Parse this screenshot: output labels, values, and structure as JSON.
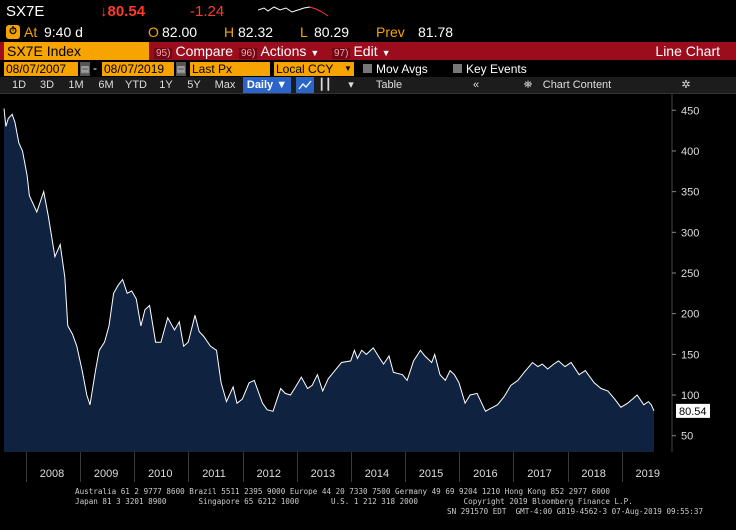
{
  "quote": {
    "ticker": "SX7E",
    "last": "↓80.54",
    "change": "-1.24",
    "at_label": "At",
    "time": "9:40 d",
    "open_label": "O",
    "open": "82.00",
    "high_label": "H",
    "high": "82.32",
    "low_label": "L",
    "low": "80.29",
    "prev_label": "Prev",
    "prev": "81.78"
  },
  "titlebar": {
    "security": "SX7E Index",
    "compare_num": "95)",
    "compare": "Compare",
    "actions_num": "96)",
    "actions": "Actions",
    "edit_num": "97)",
    "edit": "Edit",
    "chart_type": "Line Chart"
  },
  "params": {
    "start_date": "08/07/2007",
    "end_date": "08/07/2019",
    "field": "Last Px",
    "currency": "Local CCY",
    "mov_avgs": "Mov Avgs",
    "key_events": "Key Events"
  },
  "toolbar": {
    "periods": [
      "1D",
      "3D",
      "1M",
      "6M",
      "YTD",
      "1Y",
      "5Y",
      "Max"
    ],
    "frequency": "Daily ▼",
    "table": "Table",
    "chart_content": "Chart Content"
  },
  "chart_data": {
    "type": "area",
    "title": "",
    "xlabel": "",
    "ylabel": "",
    "x_ticks": [
      "2008",
      "2009",
      "2010",
      "2011",
      "2012",
      "2013",
      "2014",
      "2015",
      "2016",
      "2017",
      "2018",
      "2019"
    ],
    "y_ticks": [
      50,
      100,
      150,
      200,
      250,
      300,
      350,
      400,
      450
    ],
    "ylim": [
      30,
      470
    ],
    "xlim": [
      "2007-08-07",
      "2019-08-07"
    ],
    "last_value_label": "80.54",
    "series": [
      {
        "points": [
          [
            "2007-08-07",
            452
          ],
          [
            "2007-08-20",
            430
          ],
          [
            "2007-09-05",
            440
          ],
          [
            "2007-10-01",
            445
          ],
          [
            "2007-10-20",
            435
          ],
          [
            "2007-11-15",
            410
          ],
          [
            "2007-12-10",
            400
          ],
          [
            "2008-01-10",
            370
          ],
          [
            "2008-01-25",
            345
          ],
          [
            "2008-03-15",
            325
          ],
          [
            "2008-05-01",
            350
          ],
          [
            "2008-06-01",
            320
          ],
          [
            "2008-07-15",
            270
          ],
          [
            "2008-08-20",
            285
          ],
          [
            "2008-09-20",
            245
          ],
          [
            "2008-10-10",
            185
          ],
          [
            "2008-11-10",
            175
          ],
          [
            "2008-12-10",
            160
          ],
          [
            "2009-01-15",
            130
          ],
          [
            "2009-02-15",
            100
          ],
          [
            "2009-03-09",
            88
          ],
          [
            "2009-04-15",
            130
          ],
          [
            "2009-05-10",
            155
          ],
          [
            "2009-06-15",
            165
          ],
          [
            "2009-07-15",
            185
          ],
          [
            "2009-08-15",
            225
          ],
          [
            "2009-09-15",
            235
          ],
          [
            "2009-10-15",
            242
          ],
          [
            "2009-11-15",
            225
          ],
          [
            "2009-12-15",
            228
          ],
          [
            "2010-01-15",
            218
          ],
          [
            "2010-02-15",
            185
          ],
          [
            "2010-03-15",
            205
          ],
          [
            "2010-04-15",
            210
          ],
          [
            "2010-05-25",
            165
          ],
          [
            "2010-06-30",
            165
          ],
          [
            "2010-08-15",
            195
          ],
          [
            "2010-09-30",
            180
          ],
          [
            "2010-11-01",
            190
          ],
          [
            "2010-11-30",
            160
          ],
          [
            "2010-12-31",
            165
          ],
          [
            "2011-02-15",
            198
          ],
          [
            "2011-03-15",
            178
          ],
          [
            "2011-04-15",
            172
          ],
          [
            "2011-05-30",
            160
          ],
          [
            "2011-07-10",
            155
          ],
          [
            "2011-08-10",
            115
          ],
          [
            "2011-09-15",
            92
          ],
          [
            "2011-10-30",
            110
          ],
          [
            "2011-11-25",
            90
          ],
          [
            "2011-12-31",
            95
          ],
          [
            "2012-02-15",
            115
          ],
          [
            "2012-03-20",
            118
          ],
          [
            "2012-05-15",
            90
          ],
          [
            "2012-06-15",
            82
          ],
          [
            "2012-07-25",
            80
          ],
          [
            "2012-09-15",
            108
          ],
          [
            "2012-10-15",
            102
          ],
          [
            "2012-11-20",
            100
          ],
          [
            "2012-12-31",
            112
          ],
          [
            "2013-02-01",
            122
          ],
          [
            "2013-03-15",
            108
          ],
          [
            "2013-04-15",
            112
          ],
          [
            "2013-05-20",
            125
          ],
          [
            "2013-06-25",
            105
          ],
          [
            "2013-08-01",
            120
          ],
          [
            "2013-09-15",
            130
          ],
          [
            "2013-10-30",
            140
          ],
          [
            "2013-12-31",
            142
          ],
          [
            "2014-01-25",
            155
          ],
          [
            "2014-02-15",
            145
          ],
          [
            "2014-03-15",
            155
          ],
          [
            "2014-04-15",
            150
          ],
          [
            "2014-06-01",
            158
          ],
          [
            "2014-07-15",
            145
          ],
          [
            "2014-08-10",
            138
          ],
          [
            "2014-09-15",
            148
          ],
          [
            "2014-10-15",
            128
          ],
          [
            "2014-12-15",
            125
          ],
          [
            "2015-01-15",
            118
          ],
          [
            "2015-02-28",
            142
          ],
          [
            "2015-04-15",
            155
          ],
          [
            "2015-05-15",
            148
          ],
          [
            "2015-06-30",
            140
          ],
          [
            "2015-07-20",
            150
          ],
          [
            "2015-08-25",
            125
          ],
          [
            "2015-09-30",
            118
          ],
          [
            "2015-11-01",
            130
          ],
          [
            "2015-11-30",
            125
          ],
          [
            "2015-12-31",
            115
          ],
          [
            "2016-02-10",
            90
          ],
          [
            "2016-03-15",
            100
          ],
          [
            "2016-05-01",
            102
          ],
          [
            "2016-06-27",
            80
          ],
          [
            "2016-07-15",
            82
          ],
          [
            "2016-09-15",
            88
          ],
          [
            "2016-10-30",
            98
          ],
          [
            "2016-12-15",
            112
          ],
          [
            "2017-01-31",
            118
          ],
          [
            "2017-03-15",
            128
          ],
          [
            "2017-05-10",
            140
          ],
          [
            "2017-06-15",
            135
          ],
          [
            "2017-07-15",
            138
          ],
          [
            "2017-08-20",
            132
          ],
          [
            "2017-09-30",
            138
          ],
          [
            "2017-11-01",
            142
          ],
          [
            "2017-12-15",
            135
          ],
          [
            "2018-01-25",
            140
          ],
          [
            "2018-03-20",
            125
          ],
          [
            "2018-05-01",
            130
          ],
          [
            "2018-06-30",
            115
          ],
          [
            "2018-08-15",
            108
          ],
          [
            "2018-09-30",
            105
          ],
          [
            "2018-11-15",
            95
          ],
          [
            "2018-12-27",
            85
          ],
          [
            "2019-02-10",
            90
          ],
          [
            "2019-03-15",
            95
          ],
          [
            "2019-04-15",
            100
          ],
          [
            "2019-05-30",
            88
          ],
          [
            "2019-06-30",
            92
          ],
          [
            "2019-07-20",
            88
          ],
          [
            "2019-08-07",
            80.54
          ]
        ]
      }
    ],
    "colors": {
      "fill": "#0f2340",
      "line": "#ffffff",
      "axis_text": "#dddddd"
    }
  },
  "footer": {
    "line1": "Australia 61 2 9777 8600 Brazil 5511 2395 9000 Europe 44 20 7330 7500 Germany 49 69 9204 1210 Hong Kong 852 2977 6000",
    "line2": "Japan 81 3 3201 8900       Singapore 65 6212 1000       U.S. 1 212 318 2000          Copyright 2019 Bloomberg Finance L.P.",
    "line3": "SN 291570 EDT  GMT-4:00 G819-4562-3 07-Aug-2019 09:55:37"
  }
}
